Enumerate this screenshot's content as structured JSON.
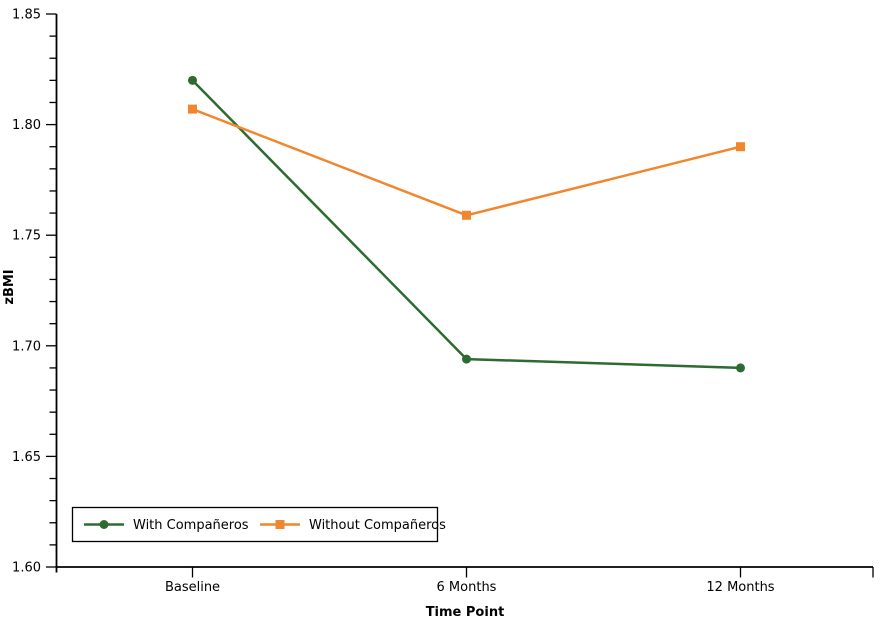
{
  "chart_data": {
    "type": "line",
    "title": "",
    "xlabel": "Time Point",
    "ylabel": "zBMI",
    "categories": [
      "Baseline",
      "6 Months",
      "12 Months"
    ],
    "series": [
      {
        "id": "with-companeros",
        "name": "With Compañeros",
        "marker": "circle",
        "color": "#2e6b30",
        "values": [
          1.82,
          1.694,
          1.69
        ]
      },
      {
        "id": "without-companeros",
        "name": "Without Compañeros",
        "marker": "square",
        "color": "#f0862d",
        "values": [
          1.807,
          1.759,
          1.79
        ]
      }
    ],
    "y_axis": {
      "min": 1.6,
      "max": 1.85,
      "major_step": 0.05,
      "minor_step": 0.01,
      "tick_labels": [
        "1.60",
        "1.65",
        "1.70",
        "1.75",
        "1.80",
        "1.85"
      ]
    },
    "x_axis": {
      "tick_labels": [
        "Baseline",
        "6 Months",
        "12 Months"
      ]
    },
    "legend": {
      "position": "bottom-left-inside",
      "entries": [
        "With Compañeros",
        "Without Compañeros"
      ]
    },
    "grid": false,
    "background_color": "#ffffff",
    "axis_color": "#000000",
    "text_color": "#000000"
  }
}
